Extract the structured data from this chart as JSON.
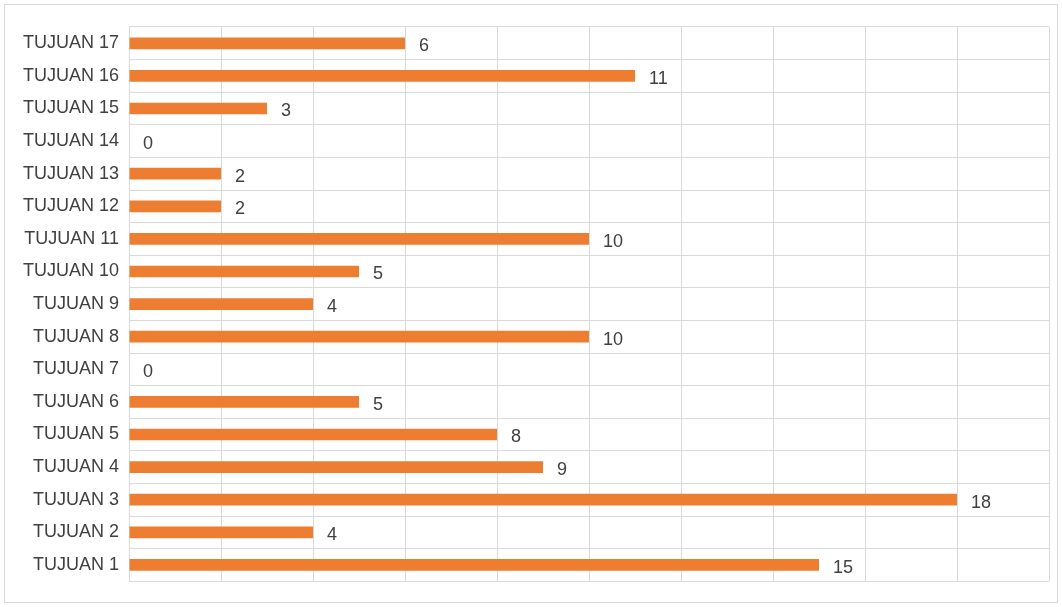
{
  "chart_data": {
    "type": "bar",
    "orientation": "horizontal",
    "categories": [
      "TUJUAN 17",
      "TUJUAN 16",
      "TUJUAN 15",
      "TUJUAN 14",
      "TUJUAN 13",
      "TUJUAN 12",
      "TUJUAN 11",
      "TUJUAN 10",
      "TUJUAN 9",
      "TUJUAN 8",
      "TUJUAN 7",
      "TUJUAN 6",
      "TUJUAN 5",
      "TUJUAN 4",
      "TUJUAN 3",
      "TUJUAN 2",
      "TUJUAN 1"
    ],
    "values": [
      6,
      11,
      3,
      0,
      2,
      2,
      10,
      5,
      4,
      10,
      0,
      5,
      8,
      9,
      18,
      4,
      15
    ],
    "color": "#ed7d31",
    "xlim": [
      0,
      20
    ],
    "xticks": [
      {
        "value": 0,
        "label": null
      },
      {
        "value": 2,
        "label": null
      },
      {
        "value": 4,
        "label": null
      },
      {
        "value": 6,
        "label": null
      },
      {
        "value": 8,
        "label": null
      },
      {
        "value": 10,
        "label": null
      },
      {
        "value": 12,
        "label": null
      },
      {
        "value": 14,
        "label": null
      },
      {
        "value": 16,
        "label": null
      },
      {
        "value": 18,
        "label": null
      },
      {
        "value": 20,
        "label": null
      }
    ],
    "tick_labels": "y",
    "grid": true,
    "legend": false,
    "data_labels": true
  }
}
